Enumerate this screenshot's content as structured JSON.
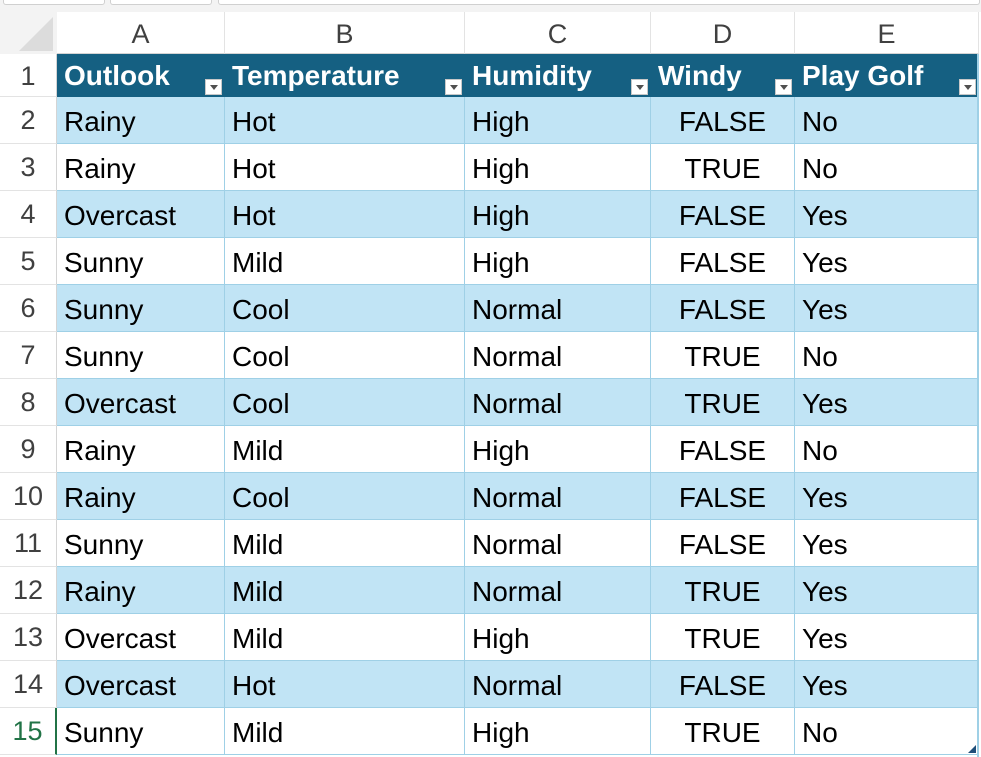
{
  "columns": [
    "A",
    "B",
    "C",
    "D",
    "E"
  ],
  "header": [
    "Outlook",
    "Temperature",
    "Humidity",
    "Windy",
    "Play Golf"
  ],
  "header_row_number": "1",
  "rows": [
    {
      "num": "2",
      "cells": [
        "Rainy",
        "Hot",
        "High",
        "FALSE",
        "No"
      ]
    },
    {
      "num": "3",
      "cells": [
        "Rainy",
        "Hot",
        "High",
        "TRUE",
        "No"
      ]
    },
    {
      "num": "4",
      "cells": [
        "Overcast",
        "Hot",
        "High",
        "FALSE",
        "Yes"
      ]
    },
    {
      "num": "5",
      "cells": [
        "Sunny",
        "Mild",
        "High",
        "FALSE",
        "Yes"
      ]
    },
    {
      "num": "6",
      "cells": [
        "Sunny",
        "Cool",
        "Normal",
        "FALSE",
        "Yes"
      ]
    },
    {
      "num": "7",
      "cells": [
        "Sunny",
        "Cool",
        "Normal",
        "TRUE",
        "No"
      ]
    },
    {
      "num": "8",
      "cells": [
        "Overcast",
        "Cool",
        "Normal",
        "TRUE",
        "Yes"
      ]
    },
    {
      "num": "9",
      "cells": [
        "Rainy",
        "Mild",
        "High",
        "FALSE",
        "No"
      ]
    },
    {
      "num": "10",
      "cells": [
        "Rainy",
        "Cool",
        "Normal",
        "FALSE",
        "Yes"
      ]
    },
    {
      "num": "11",
      "cells": [
        "Sunny",
        "Mild",
        "Normal",
        "FALSE",
        "Yes"
      ]
    },
    {
      "num": "12",
      "cells": [
        "Rainy",
        "Mild",
        "Normal",
        "TRUE",
        "Yes"
      ]
    },
    {
      "num": "13",
      "cells": [
        "Overcast",
        "Mild",
        "High",
        "TRUE",
        "Yes"
      ]
    },
    {
      "num": "14",
      "cells": [
        "Overcast",
        "Hot",
        "Normal",
        "FALSE",
        "Yes"
      ]
    },
    {
      "num": "15",
      "cells": [
        "Sunny",
        "Mild",
        "High",
        "TRUE",
        "No"
      ]
    }
  ],
  "active_row": "15",
  "colors": {
    "header_bg": "#156082",
    "band_bg": "#c1e4f5",
    "active_row_text": "#217346"
  }
}
